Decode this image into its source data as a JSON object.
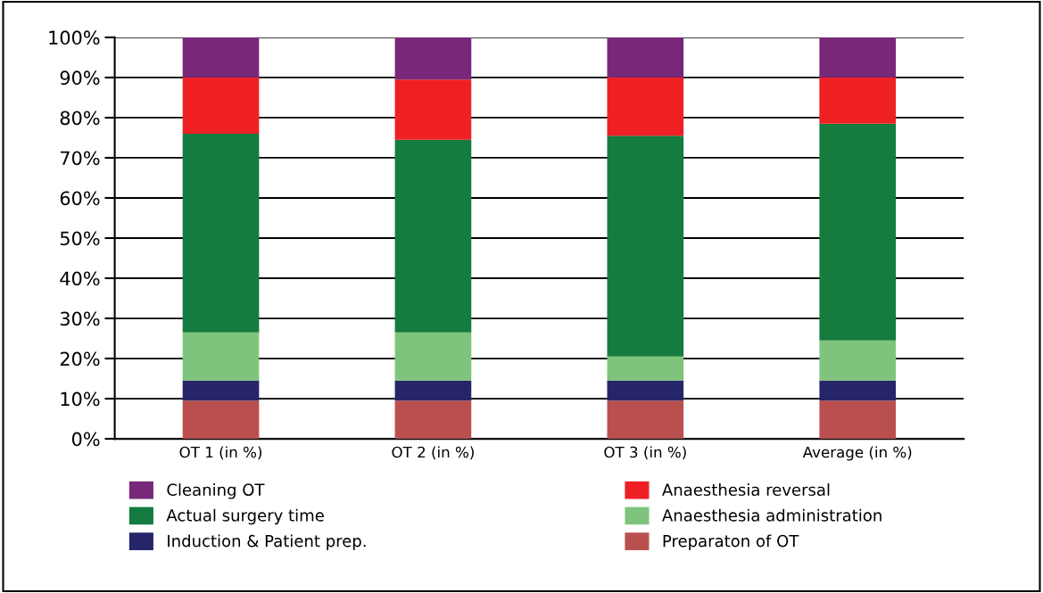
{
  "chart_data": {
    "type": "bar",
    "stacked": true,
    "categories": [
      "OT 1 (in %)",
      "OT 2 (in %)",
      "OT 3 (in %)",
      "Average (in %)"
    ],
    "series": [
      {
        "name": "Preparaton of OT",
        "color": "#b9504f",
        "values": [
          9.5,
          9.5,
          9.5,
          9.5
        ]
      },
      {
        "name": "Induction & Patient prep.",
        "color": "#262568",
        "values": [
          5,
          5,
          5,
          5
        ]
      },
      {
        "name": "Anaesthesia administration",
        "color": "#7fc47c",
        "values": [
          12,
          12,
          6,
          10
        ]
      },
      {
        "name": "Actual surgery time",
        "color": "#137c3e",
        "values": [
          49.5,
          48,
          55,
          54
        ]
      },
      {
        "name": "Anaesthesia reversal",
        "color": "#ee2024",
        "values": [
          14,
          15,
          14.5,
          11.5
        ]
      },
      {
        "name": "Cleaning OT",
        "color": "#772878",
        "values": [
          10,
          10.5,
          10,
          10
        ]
      }
    ],
    "ylim": [
      0,
      100
    ],
    "yticks": [
      {
        "value": 0,
        "label": "0%"
      },
      {
        "value": 10,
        "label": "10%"
      },
      {
        "value": 20,
        "label": "20%"
      },
      {
        "value": 30,
        "label": "30%"
      },
      {
        "value": 40,
        "label": "40%"
      },
      {
        "value": 50,
        "label": "50%"
      },
      {
        "value": 60,
        "label": "60%"
      },
      {
        "value": 70,
        "label": "70%"
      },
      {
        "value": 80,
        "label": "80%"
      },
      {
        "value": 90,
        "label": "90%"
      },
      {
        "value": 100,
        "label": "100%"
      }
    ],
    "grid": "y",
    "legend": "bottom"
  }
}
